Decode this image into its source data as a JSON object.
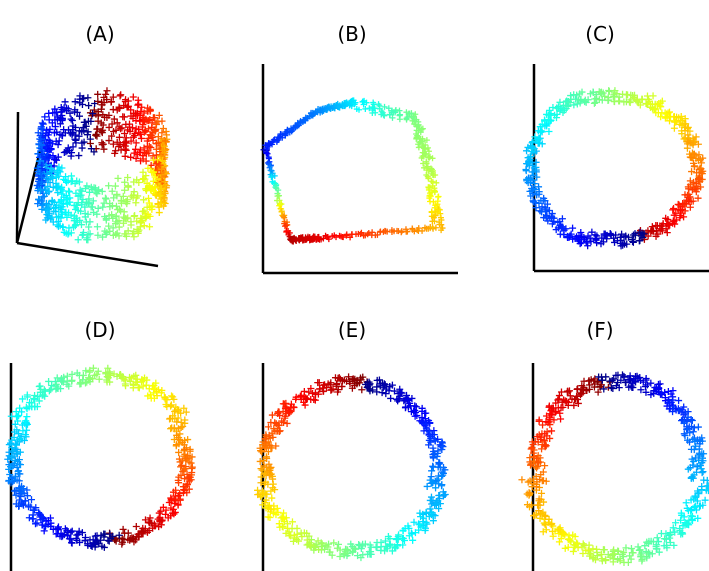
{
  "chart_data": [
    {
      "label": "(A)",
      "type": "scatter",
      "view": "3d",
      "marker": "+",
      "colormap": "jet",
      "shape": "cylinder-ring",
      "axes": "3d-corner",
      "x": [],
      "y": []
    },
    {
      "label": "(B)",
      "type": "scatter",
      "view": "2d",
      "marker": "+",
      "colormap": "jet",
      "shape": "polygon-loop",
      "axes": "left-bottom",
      "x": [],
      "y": []
    },
    {
      "label": "(C)",
      "type": "scatter",
      "view": "2d",
      "marker": "+",
      "colormap": "jet",
      "shape": "ring",
      "axes": "left-bottom",
      "x": [],
      "y": []
    },
    {
      "label": "(D)",
      "type": "scatter",
      "view": "2d",
      "marker": "+",
      "colormap": "jet",
      "shape": "ring",
      "axes": "left",
      "x": [],
      "y": []
    },
    {
      "label": "(E)",
      "type": "scatter",
      "view": "2d",
      "marker": "+",
      "colormap": "jet",
      "shape": "ring",
      "axes": "left",
      "x": [],
      "y": []
    },
    {
      "label": "(F)",
      "type": "scatter",
      "view": "2d",
      "marker": "+",
      "colormap": "jet",
      "shape": "ring",
      "axes": "left",
      "x": [],
      "y": []
    }
  ],
  "colors": {
    "axis": "#000000",
    "background": "#ffffff"
  }
}
